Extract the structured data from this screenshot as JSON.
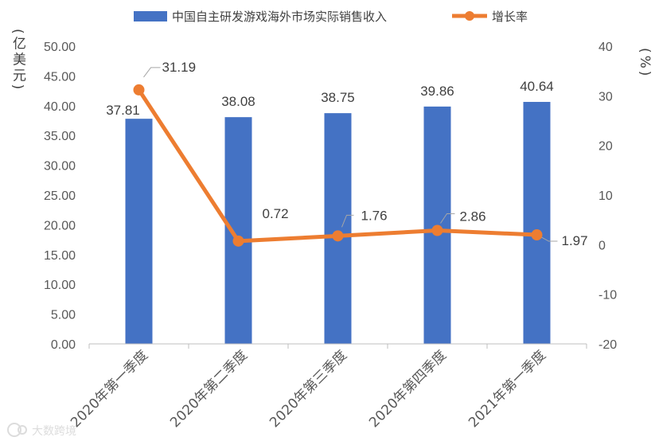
{
  "chart_data": {
    "type": "bar",
    "categories": [
      "2020年第一季度",
      "2020年第二季度",
      "2020年第三季度",
      "2020年第四季度",
      "2021年第一季度"
    ],
    "series": [
      {
        "name": "中国自主研发游戏海外市场实际销售收入",
        "chart_type": "bar",
        "axis": "left",
        "values": [
          37.81,
          38.08,
          38.75,
          39.86,
          40.64
        ],
        "color": "#4472C4"
      },
      {
        "name": "增长率",
        "chart_type": "line",
        "axis": "right",
        "values": [
          31.19,
          0.72,
          1.76,
          2.86,
          1.97
        ],
        "color": "#ED7D31"
      }
    ],
    "ylabel": "(亿美元)",
    "ylabel_right": "(%)",
    "ylim": [
      0,
      50
    ],
    "yticks": [
      "0.00",
      "5.00",
      "10.00",
      "15.00",
      "20.00",
      "25.00",
      "30.00",
      "35.00",
      "40.00",
      "45.00",
      "50.00"
    ],
    "ylim_right": [
      -20,
      40
    ],
    "yticks_right": [
      "-20",
      "-10",
      "0",
      "10",
      "20",
      "30",
      "40"
    ],
    "legend": "top",
    "grid": false
  },
  "watermark": "大数跨境"
}
